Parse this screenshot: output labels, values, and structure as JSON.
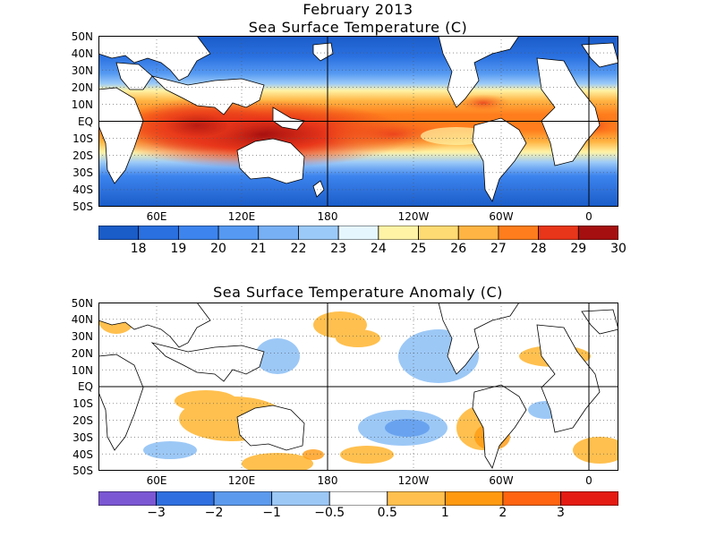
{
  "titles": {
    "month": "February 2013",
    "panel1": "Sea Surface Temperature (C)",
    "panel2": "Sea Surface Temperature Anomaly (C)"
  },
  "axes": {
    "lat_labels": [
      "50N",
      "40N",
      "30N",
      "20N",
      "10N",
      "EQ",
      "10S",
      "20S",
      "30S",
      "40S",
      "50S"
    ],
    "lon_labels": [
      "60E",
      "120E",
      "180",
      "120W",
      "60W",
      "0"
    ]
  },
  "colorbar1": {
    "labels": [
      "18",
      "19",
      "20",
      "21",
      "22",
      "23",
      "24",
      "25",
      "26",
      "27",
      "28",
      "29",
      "30"
    ],
    "colors": [
      "#1a5cc8",
      "#2a70e0",
      "#3d84ee",
      "#5599f2",
      "#78b0f5",
      "#9ccaf8",
      "#e6f6ff",
      "#fff3a6",
      "#ffdb73",
      "#ffb443",
      "#ff7d1c",
      "#e8361a",
      "#a50f0f"
    ]
  },
  "colorbar2": {
    "labels": [
      "−3",
      "−2",
      "−1",
      "−0.5",
      "0.5",
      "1",
      "2",
      "3"
    ],
    "colors": [
      "#7b57d4",
      "#2f6fe0",
      "#5c9aee",
      "#9cc8f6",
      "#ffffff",
      "#ffc04f",
      "#ff9a10",
      "#ff6410",
      "#e41b12"
    ]
  },
  "style": {
    "ocean_cool": "#3f86e8",
    "ocean_warm": "#ff8a1c",
    "land": "#ffffff",
    "coast": "#000000"
  }
}
